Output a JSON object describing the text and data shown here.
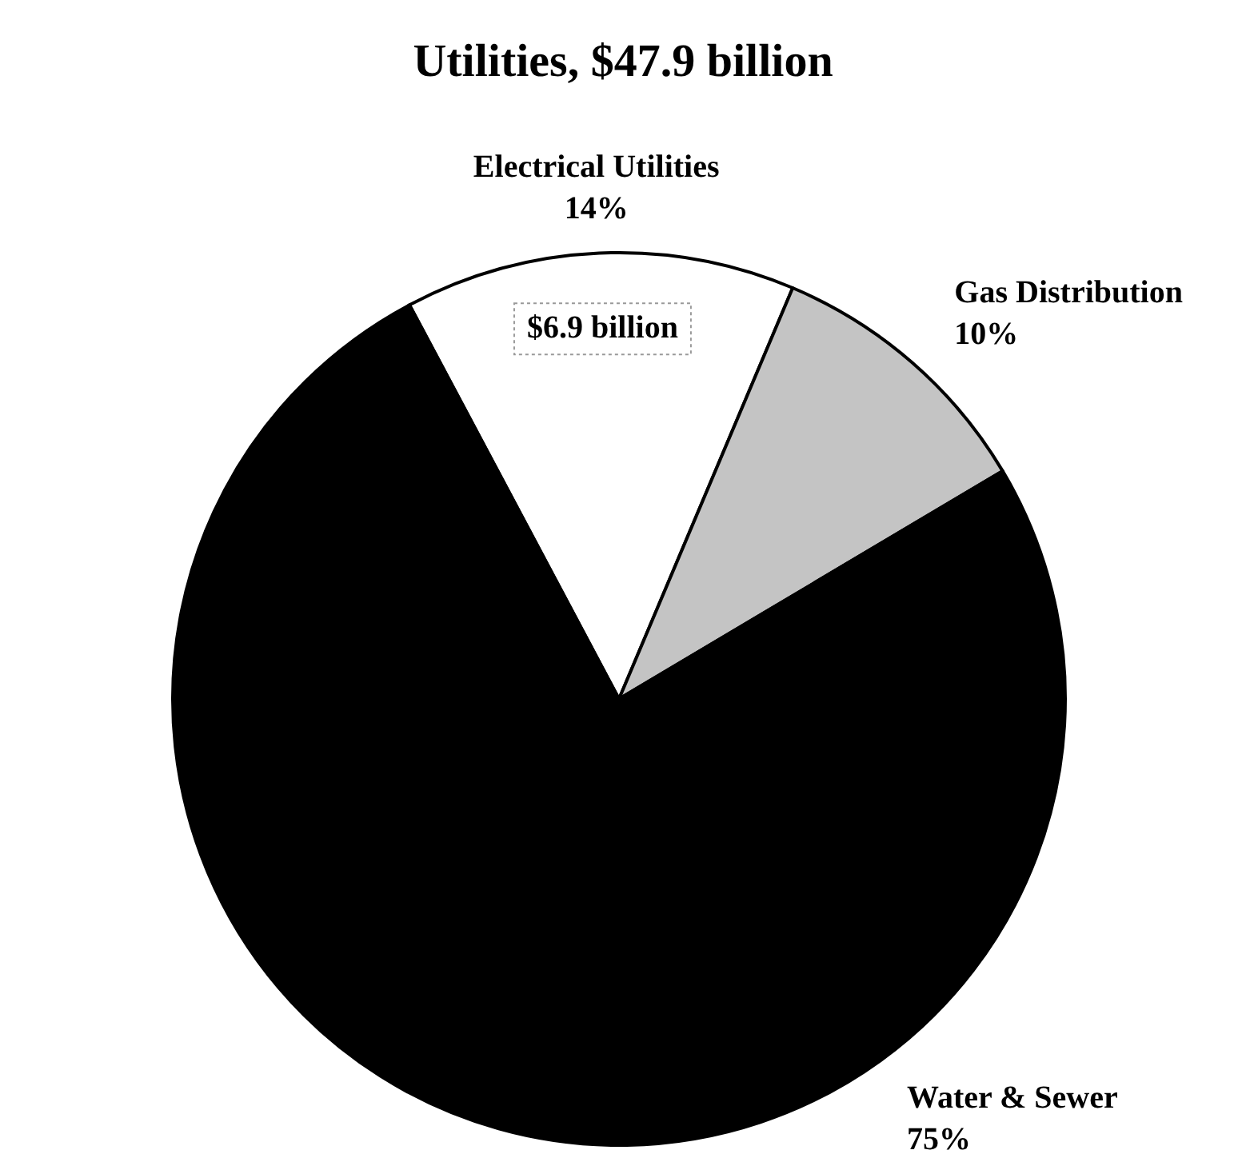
{
  "chart_data": {
    "type": "pie",
    "title": "Utilities, $47.9 billion",
    "categories": [
      "Electrical Utilities",
      "Gas Distribution",
      "Water & Sewer"
    ],
    "values": [
      14,
      10,
      75
    ],
    "value_labels": [
      "14%",
      "10%",
      "75%"
    ],
    "colors": [
      "#ffffff",
      "#c4c4c4",
      "#000000"
    ],
    "annotations": [
      "$6.9 billion"
    ],
    "legend": false
  }
}
